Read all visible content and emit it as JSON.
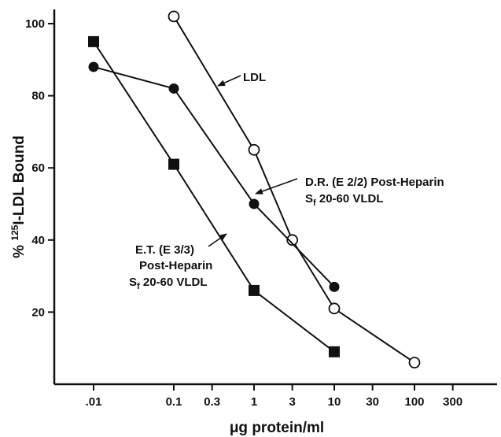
{
  "chart_data": {
    "type": "line",
    "x_scale": "log",
    "xlabel": "μg protein/ml",
    "ylabel_prefix": "% ",
    "ylabel_sup": "125",
    "ylabel_suffix": "I-LDL Bound",
    "xlim": [
      0.01,
      300
    ],
    "ylim": [
      0,
      105
    ],
    "x_ticks": [
      {
        "value": 0.01,
        "label": ".01"
      },
      {
        "value": 0.1,
        "label": "0.1"
      },
      {
        "value": 0.3,
        "label": "0.3"
      },
      {
        "value": 1,
        "label": "1"
      },
      {
        "value": 3,
        "label": "3"
      },
      {
        "value": 10,
        "label": "10"
      },
      {
        "value": 30,
        "label": "30"
      },
      {
        "value": 100,
        "label": "100"
      },
      {
        "value": 300,
        "label": "300"
      }
    ],
    "y_ticks": [
      {
        "value": 20,
        "label": "20"
      },
      {
        "value": 40,
        "label": "40"
      },
      {
        "value": 60,
        "label": "60"
      },
      {
        "value": 80,
        "label": "80"
      },
      {
        "value": 100,
        "label": "100"
      }
    ],
    "grid": false,
    "legend": "none",
    "series": [
      {
        "key": "ldl",
        "marker": "open-circle",
        "x": [
          0.1,
          1,
          3,
          10,
          100
        ],
        "y": [
          102,
          65,
          40,
          21,
          6
        ]
      },
      {
        "key": "dr",
        "marker": "filled-circle",
        "x": [
          0.01,
          0.1,
          1,
          10
        ],
        "y": [
          88,
          82,
          50,
          27
        ]
      },
      {
        "key": "et",
        "marker": "filled-square",
        "x": [
          0.01,
          0.1,
          1,
          10
        ],
        "y": [
          95,
          61,
          26,
          9
        ]
      }
    ],
    "annotations": {
      "ldl": {
        "line1": "LDL"
      },
      "dr": {
        "line1": "D.R. (E 2/2) Post-Heparin",
        "line2_main": "S",
        "line2_sub": "f",
        "line2_rest": " 20-60 VLDL"
      },
      "et": {
        "line1": "E.T. (E 3/3)",
        "line2": "Post-Heparin",
        "line3_main": "S",
        "line3_sub": "f",
        "line3_rest": " 20-60 VLDL"
      }
    }
  }
}
